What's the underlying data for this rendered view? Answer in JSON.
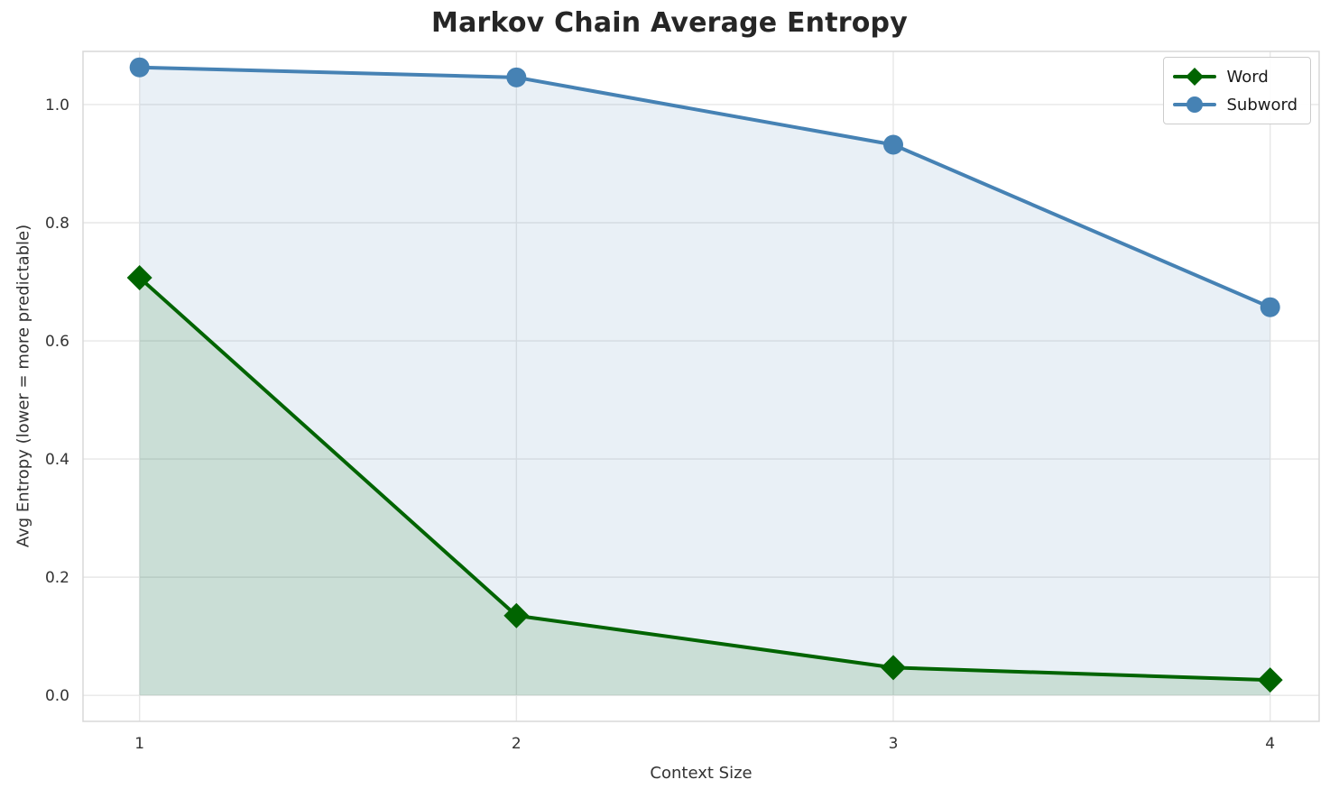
{
  "chart_data": {
    "type": "line",
    "title": "Markov Chain Average Entropy",
    "xlabel": "Context Size",
    "ylabel": "Avg Entropy (lower = more predictable)",
    "x": [
      1,
      2,
      3,
      4
    ],
    "series": [
      {
        "name": "Word",
        "color": "#006400",
        "marker": "diamond",
        "fill_alpha": 0.13,
        "values": [
          0.707,
          0.135,
          0.047,
          0.026
        ]
      },
      {
        "name": "Subword",
        "color": "#4682b4",
        "marker": "circle",
        "fill_alpha": 0.12,
        "values": [
          1.063,
          1.046,
          0.932,
          0.657
        ]
      }
    ],
    "xticks": [
      "1",
      "2",
      "3",
      "4"
    ],
    "yticks": [
      "0.0",
      "0.2",
      "0.4",
      "0.6",
      "0.8",
      "1.0"
    ],
    "ytick_values": [
      0.0,
      0.2,
      0.4,
      0.6,
      0.8,
      1.0
    ],
    "xlim": [
      0.85,
      4.13
    ],
    "ylim": [
      -0.044,
      1.09
    ],
    "grid": true,
    "grid_color": "#e7e7e7",
    "border_color": "#d8d8d8",
    "area_fill": true,
    "legend_position": "upper right"
  }
}
